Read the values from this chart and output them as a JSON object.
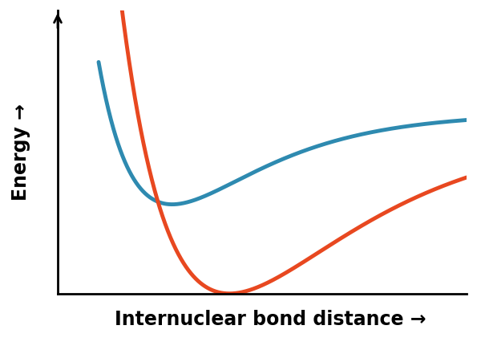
{
  "title": "",
  "xlabel": "Internuclear bond distance →",
  "ylabel": "Energy →",
  "background_color": "#ffffff",
  "curve1_color": "#2e8ab0",
  "curve2_color": "#e84820",
  "curve1_linewidth": 3.5,
  "curve2_linewidth": 3.5,
  "xlabel_fontsize": 17,
  "ylabel_fontsize": 17,
  "xlabel_fontweight": "bold",
  "ylabel_fontweight": "bold",
  "figsize": [
    6.0,
    4.46
  ],
  "dpi": 100,
  "blue": {
    "D_e": 0.42,
    "a": 4.5,
    "r_e": 0.28,
    "asymptote": 0.58
  },
  "red": {
    "D_e": 0.75,
    "a": 3.2,
    "r_e": 0.42,
    "asymptote": 0.5
  },
  "xlim": [
    0.0,
    1.0
  ],
  "ylim": [
    -0.25,
    1.05
  ]
}
